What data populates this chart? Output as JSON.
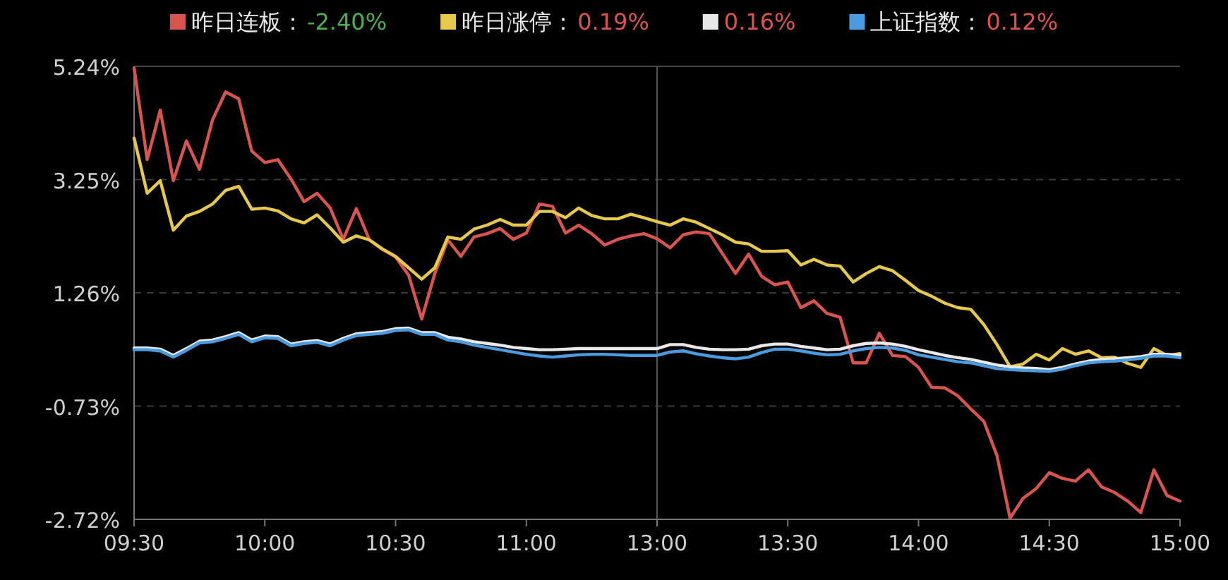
{
  "chart_data": {
    "type": "line",
    "categories": [
      "09:30",
      null,
      null,
      null,
      null,
      null,
      null,
      null,
      null,
      null,
      "10:00",
      null,
      null,
      null,
      null,
      null,
      null,
      null,
      null,
      null,
      "10:30",
      null,
      null,
      null,
      null,
      null,
      null,
      null,
      null,
      null,
      "11:00",
      null,
      null,
      null,
      null,
      null,
      null,
      null,
      null,
      null,
      "13:00",
      null,
      null,
      null,
      null,
      null,
      null,
      null,
      null,
      null,
      "13:30",
      null,
      null,
      null,
      null,
      null,
      null,
      null,
      null,
      null,
      "14:00",
      null,
      null,
      null,
      null,
      null,
      null,
      null,
      null,
      null,
      "14:30",
      null,
      null,
      null,
      null,
      null,
      null,
      null,
      null,
      null,
      "15:00"
    ],
    "ylim": [
      -2.72,
      5.24
    ],
    "yticks": [
      {
        "value": -2.72,
        "label": "-2.72%"
      },
      {
        "value": -0.73,
        "label": "-0.73%"
      },
      {
        "value": 1.26,
        "label": "1.26%"
      },
      {
        "value": 3.25,
        "label": "3.25%"
      },
      {
        "value": 5.24,
        "label": "5.24%"
      }
    ],
    "grid": "y",
    "legend": "top",
    "ref_lines": [
      {
        "axis": "x",
        "value": "13:00",
        "color": "#555555"
      }
    ],
    "annotations": [
      "-2.40%",
      "0.19%",
      "0.16%",
      "0.12%"
    ],
    "series": [
      {
        "name": "昨日连板：",
        "color": "#d9534f",
        "values": [
          5.21,
          3.6,
          4.47,
          3.23,
          3.93,
          3.43,
          4.3,
          4.79,
          4.67,
          3.75,
          3.55,
          3.6,
          3.26,
          2.86,
          3.01,
          2.75,
          2.2,
          2.74,
          2.19,
          2.02,
          1.89,
          1.57,
          0.8,
          1.6,
          2.19,
          1.9,
          2.24,
          2.3,
          2.39,
          2.2,
          2.31,
          2.82,
          2.78,
          2.31,
          2.45,
          2.3,
          2.1,
          2.2,
          2.26,
          2.3,
          2.21,
          2.05,
          2.28,
          2.33,
          2.3,
          1.95,
          1.6,
          1.94,
          1.55,
          1.4,
          1.45,
          1.0,
          1.12,
          0.9,
          0.83,
          0.03,
          0.03,
          0.55,
          0.16,
          0.14,
          -0.05,
          -0.4,
          -0.41,
          -0.55,
          -0.78,
          -1.0,
          -1.6,
          -2.7,
          -2.35,
          -2.18,
          -1.9,
          -2.0,
          -2.05,
          -1.85,
          -2.15,
          -2.25,
          -2.4,
          -2.6,
          -1.85,
          -2.3,
          -2.4
        ]
      },
      {
        "name": "昨日涨停：",
        "color": "#e6c84a",
        "values": [
          3.98,
          3.01,
          3.23,
          2.36,
          2.61,
          2.69,
          2.82,
          3.06,
          3.13,
          2.73,
          2.75,
          2.7,
          2.56,
          2.49,
          2.63,
          2.4,
          2.15,
          2.26,
          2.19,
          2.03,
          1.9,
          1.7,
          1.5,
          1.7,
          2.24,
          2.2,
          2.38,
          2.45,
          2.55,
          2.45,
          2.45,
          2.69,
          2.69,
          2.58,
          2.75,
          2.62,
          2.56,
          2.56,
          2.64,
          2.58,
          2.51,
          2.45,
          2.56,
          2.5,
          2.39,
          2.28,
          2.15,
          2.12,
          1.99,
          1.99,
          2.0,
          1.75,
          1.85,
          1.75,
          1.73,
          1.45,
          1.6,
          1.72,
          1.65,
          1.48,
          1.3,
          1.2,
          1.08,
          1.0,
          0.97,
          0.7,
          0.35,
          -0.04,
          0.01,
          0.18,
          0.08,
          0.28,
          0.18,
          0.24,
          0.12,
          0.13,
          0.02,
          -0.05,
          0.28,
          0.16,
          0.19
        ]
      },
      {
        "color": "#e8e8e8",
        "values": [
          0.29,
          0.29,
          0.27,
          0.16,
          0.28,
          0.41,
          0.43,
          0.49,
          0.56,
          0.43,
          0.5,
          0.49,
          0.36,
          0.4,
          0.42,
          0.36,
          0.46,
          0.54,
          0.56,
          0.58,
          0.63,
          0.64,
          0.56,
          0.56,
          0.48,
          0.45,
          0.4,
          0.37,
          0.34,
          0.3,
          0.28,
          0.26,
          0.26,
          0.27,
          0.28,
          0.28,
          0.28,
          0.28,
          0.28,
          0.28,
          0.28,
          0.35,
          0.35,
          0.3,
          0.27,
          0.26,
          0.26,
          0.27,
          0.33,
          0.36,
          0.36,
          0.32,
          0.29,
          0.26,
          0.27,
          0.33,
          0.37,
          0.38,
          0.36,
          0.32,
          0.26,
          0.21,
          0.16,
          0.12,
          0.09,
          0.04,
          -0.01,
          -0.04,
          -0.06,
          -0.07,
          -0.09,
          -0.05,
          0.01,
          0.06,
          0.09,
          0.1,
          0.12,
          0.14,
          0.18,
          0.18,
          0.16
        ]
      },
      {
        "name": "上证指数：",
        "color": "#4a9be0",
        "values": [
          0.26,
          0.26,
          0.24,
          0.13,
          0.25,
          0.38,
          0.4,
          0.46,
          0.53,
          0.4,
          0.47,
          0.46,
          0.33,
          0.37,
          0.39,
          0.33,
          0.43,
          0.51,
          0.53,
          0.55,
          0.6,
          0.61,
          0.53,
          0.53,
          0.43,
          0.4,
          0.34,
          0.3,
          0.26,
          0.22,
          0.18,
          0.15,
          0.13,
          0.15,
          0.17,
          0.18,
          0.18,
          0.17,
          0.16,
          0.16,
          0.16,
          0.22,
          0.24,
          0.19,
          0.15,
          0.12,
          0.1,
          0.13,
          0.21,
          0.27,
          0.27,
          0.24,
          0.2,
          0.17,
          0.18,
          0.24,
          0.28,
          0.3,
          0.29,
          0.25,
          0.17,
          0.13,
          0.09,
          0.05,
          0.03,
          -0.02,
          -0.07,
          -0.09,
          -0.1,
          -0.11,
          -0.12,
          -0.08,
          -0.02,
          0.03,
          0.05,
          0.06,
          0.08,
          0.11,
          0.15,
          0.15,
          0.12
        ]
      }
    ]
  }
}
